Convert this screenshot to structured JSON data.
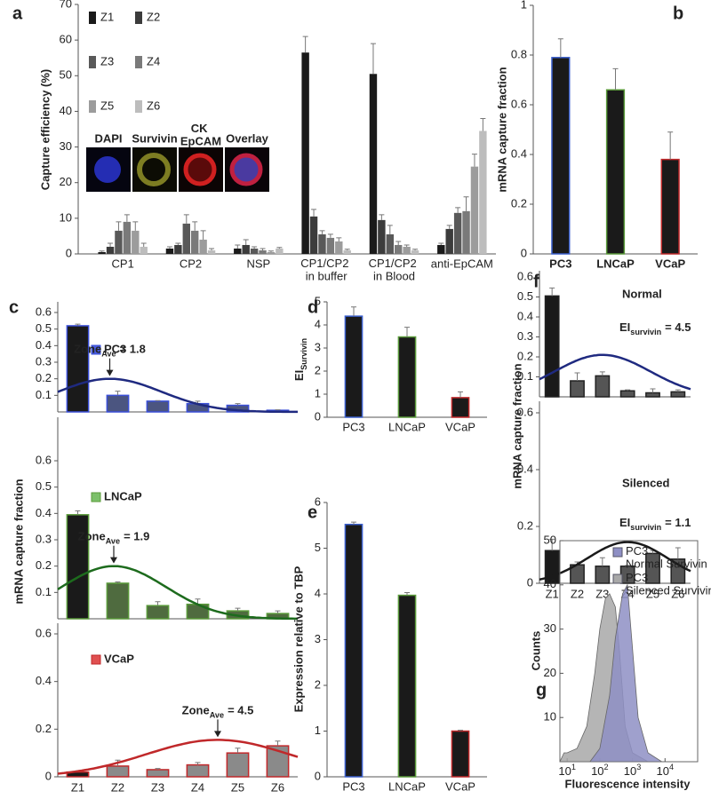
{
  "chart_data": [
    {
      "panel_label": "a",
      "type": "bar",
      "y_label": "Capture efficiency (%)",
      "categories": [
        "CP1",
        "CP2",
        "NSP",
        "CP1/CP2 in buffer",
        "CP1/CP2 in Blood",
        "anti-EpCAM"
      ],
      "series": [
        {
          "name": "Z1",
          "color": "#1a1a1a",
          "values": [
            0.5,
            1.5,
            1.5,
            56.5,
            50.5,
            2.5
          ],
          "errors": [
            0.3,
            0.5,
            1,
            4.5,
            8.5,
            0.5
          ]
        },
        {
          "name": "Z2",
          "color": "#3c3c3c",
          "values": [
            2,
            2.5,
            2.5,
            10.5,
            9.5,
            7
          ],
          "errors": [
            1,
            0.5,
            1.5,
            2,
            1.5,
            1
          ]
        },
        {
          "name": "Z3",
          "color": "#595959",
          "values": [
            6.5,
            8.5,
            1.5,
            5.5,
            5.5,
            11.5
          ],
          "errors": [
            2.5,
            2.5,
            0.5,
            1,
            2.5,
            1.5
          ]
        },
        {
          "name": "Z4",
          "color": "#7a7a7a",
          "values": [
            9,
            6.5,
            1,
            4.5,
            2.5,
            12
          ],
          "errors": [
            2,
            2.5,
            0.5,
            1,
            1,
            4
          ]
        },
        {
          "name": "Z5",
          "color": "#9c9c9c",
          "values": [
            6.5,
            4,
            0.5,
            3.5,
            2,
            24.5
          ],
          "errors": [
            2.5,
            2.5,
            0.3,
            1,
            0.5,
            3.5
          ]
        },
        {
          "name": "Z6",
          "color": "#bdbdbd",
          "values": [
            2,
            1,
            1.5,
            1,
            1,
            34.5
          ],
          "errors": [
            1,
            0.5,
            0.3,
            0.3,
            0.3,
            3.5
          ]
        }
      ],
      "ylim": [
        0,
        70
      ],
      "yticks": [
        0,
        10,
        20,
        30,
        40,
        50,
        60,
        70
      ],
      "inset_labels": [
        "DAPI",
        "Survivin",
        "CK EpCAM",
        "Overlay"
      ]
    },
    {
      "panel_label": "b",
      "type": "bar",
      "y_label": "mRNA capture fraction",
      "categories": [
        "PC3",
        "LNCaP",
        "VCaP"
      ],
      "values": [
        0.79,
        0.66,
        0.38
      ],
      "errors": [
        0.075,
        0.085,
        0.11
      ],
      "color": "#1a1a1a",
      "edge_colors": [
        "#3a5fcd",
        "#5a9a3a",
        "#c0282a"
      ],
      "ylim": [
        0,
        1
      ],
      "yticks": [
        0,
        0.2,
        0.4,
        0.6,
        0.8,
        1
      ]
    },
    {
      "panel_label": "c",
      "type": "bar_fit",
      "y_label": "mRNA capture fraction",
      "categories": [
        "Z1",
        "Z2",
        "Z3",
        "Z4",
        "Z5",
        "Z6"
      ],
      "legend_swatch": true,
      "arrow": true,
      "subplots": [
        {
          "name": "PC3",
          "color": "#4a5ee0",
          "edge_color": "#3a4fd8",
          "colors": [
            "#1a1a1a",
            "#4b5580",
            "#4b5580",
            "#4b5580",
            "#4b5580",
            "#4b5580"
          ],
          "values": [
            0.52,
            0.1,
            0.065,
            0.05,
            0.04,
            0.01
          ],
          "errors": [
            0.01,
            0.025,
            0.003,
            0.015,
            0.01,
            0.003
          ],
          "ylim": [
            0,
            0.6
          ],
          "yticks": [
            0.1,
            0.2,
            0.3,
            0.4,
            0.5,
            0.6
          ],
          "fit": {
            "color": "#1f2a80",
            "center": 1.8,
            "amplitude": 0.2,
            "sd": 1.3
          },
          "annotation": "Zone",
          "annotation_subscript": "Ave",
          "annotation_value": "= 1.8"
        },
        {
          "name": "LNCaP",
          "color": "#7cc06a",
          "edge_color": "#5a9a3a",
          "colors": [
            "#1a1a1a",
            "#4f6b3f",
            "#4f6b3f",
            "#4f6b3f",
            "#4f6b3f",
            "#4f6b3f"
          ],
          "values": [
            0.395,
            0.135,
            0.05,
            0.055,
            0.03,
            0.02
          ],
          "errors": [
            0.015,
            0.005,
            0.015,
            0.02,
            0.01,
            0.01
          ],
          "ylim": [
            0,
            0.6
          ],
          "yticks": [
            0.1,
            0.2,
            0.3,
            0.4,
            0.5,
            0.6
          ],
          "fit": {
            "color": "#1d6b1d",
            "center": 1.9,
            "amplitude": 0.2,
            "sd": 1.3
          },
          "annotation": "Zone",
          "annotation_subscript": "Ave",
          "annotation_value": "= 1.9"
        },
        {
          "name": "VCaP",
          "color": "#e05050",
          "edge_color": "#c0282a",
          "colors": [
            "#1a1a1a",
            "#8a8a8a",
            "#8a8a8a",
            "#8a8a8a",
            "#8a8a8a",
            "#8a8a8a"
          ],
          "values": [
            0.02,
            0.045,
            0.03,
            0.05,
            0.1,
            0.13
          ],
          "errors": [
            0.005,
            0.025,
            0.005,
            0.01,
            0.02,
            0.02
          ],
          "ylim": [
            0,
            0.6
          ],
          "yticks": [
            0,
            0.2,
            0.4,
            0.6
          ],
          "fit": {
            "color": "#c0282a",
            "center": 4.5,
            "amplitude": 0.155,
            "sd": 1.8
          },
          "annotation": "Zone",
          "annotation_subscript": "Ave",
          "annotation_value": "= 4.5"
        }
      ]
    },
    {
      "panel_label": "d",
      "type": "bar",
      "y_label": "EI",
      "y_label_subscript": "Survivin",
      "categories": [
        "PC3",
        "LNCaP",
        "VCaP"
      ],
      "values": [
        4.38,
        3.48,
        0.85
      ],
      "errors": [
        0.4,
        0.42,
        0.25
      ],
      "color": "#1a1a1a",
      "edge_colors": [
        "#3a5fcd",
        "#5a9a3a",
        "#c0282a"
      ],
      "ylim": [
        0,
        5
      ],
      "yticks": [
        0,
        1,
        2,
        3,
        4,
        5
      ]
    },
    {
      "panel_label": "e",
      "type": "bar",
      "y_label": "Expression relative to TBP",
      "categories": [
        "PC3",
        "LNCaP",
        "VCaP"
      ],
      "values": [
        5.52,
        3.97,
        1
      ],
      "errors": [
        0.05,
        0.06,
        0.02
      ],
      "color": "#1a1a1a",
      "edge_colors": [
        "#3a5fcd",
        "#5a9a3a",
        "#c0282a"
      ],
      "ylim": [
        0,
        6
      ],
      "yticks": [
        0,
        1,
        2,
        3,
        4,
        5,
        6
      ]
    },
    {
      "panel_label": "f",
      "type": "bar_fit",
      "y_label": "mRNA capture fraction",
      "categories": [
        "Z1",
        "Z2",
        "Z3",
        "Z4",
        "Z5",
        "Z6"
      ],
      "legend_swatch": false,
      "arrow": false,
      "subplots": [
        {
          "name": "Normal",
          "edge_color": "#222222",
          "colors": [
            "#1a1a1a",
            "#555555",
            "#555555",
            "#555555",
            "#555555",
            "#555555"
          ],
          "values": [
            0.505,
            0.08,
            0.105,
            0.03,
            0.02,
            0.025
          ],
          "errors": [
            0.04,
            0.04,
            0.02,
            0.005,
            0.02,
            0.01
          ],
          "ylim": [
            0,
            0.6
          ],
          "yticks": [
            0.1,
            0.2,
            0.3,
            0.4,
            0.5,
            0.6
          ],
          "fit": {
            "color": "#1f2a80",
            "center": 3,
            "amplitude": 0.21,
            "sd": 1.9
          },
          "annotation": "EI",
          "annotation_subscript": "survivin",
          "annotation_value": "= 4.5"
        },
        {
          "name": "Silenced",
          "edge_color": "#222222",
          "colors": [
            "#1a1a1a",
            "#555555",
            "#555555",
            "#555555",
            "#555555",
            "#555555"
          ],
          "values": [
            0.115,
            0.065,
            0.06,
            0.06,
            0.105,
            0.085
          ],
          "errors": [
            0.04,
            0.01,
            0.03,
            0.003,
            0.01,
            0.04
          ],
          "ylim": [
            0,
            0.6
          ],
          "yticks": [
            0,
            0.2,
            0.4,
            0.6
          ],
          "fit": {
            "color": "#1a1a1a",
            "center": 4,
            "amplitude": 0.145,
            "sd": 1.6
          },
          "annotation": "EI",
          "annotation_subscript": "survivin",
          "annotation_value": "= 1.1"
        }
      ]
    },
    {
      "panel_label": "g",
      "type": "area",
      "x_label": "Fluorescence intensity",
      "y_label": "Counts",
      "xscale": "log",
      "xlim": [
        6,
        100000
      ],
      "xticks": [
        {
          "value": 10,
          "label": "10",
          "exponent": "1"
        },
        {
          "value": 100,
          "label": "10",
          "exponent": "2"
        },
        {
          "value": 1000,
          "label": "10",
          "exponent": "3"
        },
        {
          "value": 10000,
          "label": "10",
          "exponent": "4"
        }
      ],
      "ylim": [
        0,
        50
      ],
      "yticks": [
        10,
        20,
        30,
        40,
        50
      ],
      "series": [
        {
          "name": "PC3 Normal Survivin",
          "color": "#8e8fc4",
          "x": [
            50,
            100,
            200,
            300,
            500,
            700,
            900,
            1500,
            3000,
            8000
          ],
          "y": [
            0,
            3,
            15,
            28,
            38,
            40,
            30,
            10,
            2,
            0
          ]
        },
        {
          "name": "PC3 Silenced Survivin",
          "color": "#a8a8a8",
          "x": [
            6,
            8,
            10,
            20,
            40,
            70,
            100,
            150,
            200,
            300,
            400,
            600,
            1000,
            3000
          ],
          "y": [
            0,
            2,
            2,
            3,
            8,
            20,
            30,
            37,
            38,
            35,
            25,
            8,
            2,
            0
          ]
        }
      ]
    }
  ]
}
